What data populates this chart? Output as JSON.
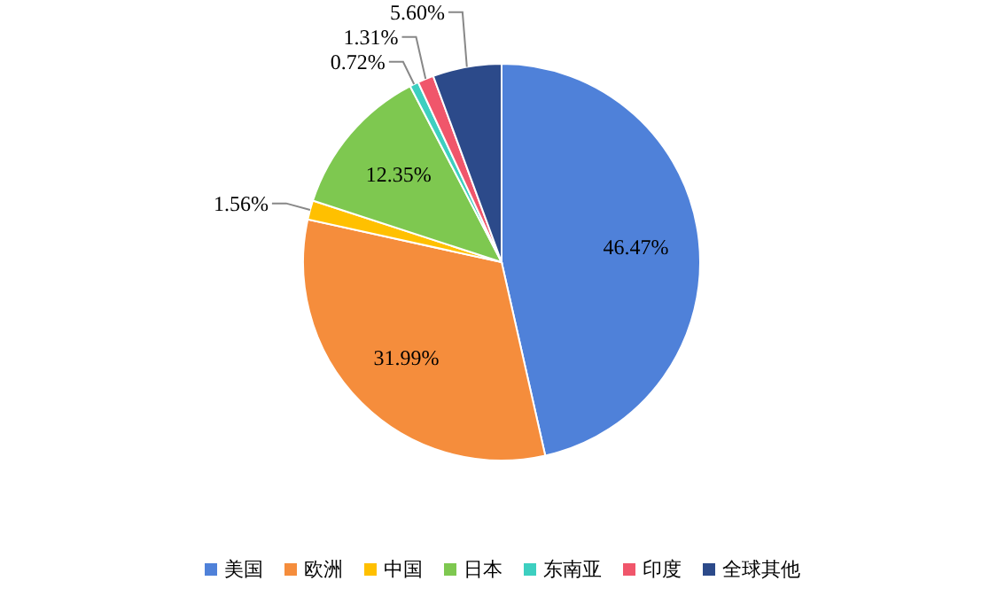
{
  "chart_data": {
    "type": "pie",
    "categories": [
      "美国",
      "欧洲",
      "中国",
      "日本",
      "东南亚",
      "印度",
      "全球其他"
    ],
    "values": [
      46.47,
      31.99,
      1.56,
      12.35,
      0.72,
      1.31,
      5.6
    ],
    "colors": [
      "#4f81d9",
      "#f58d3c",
      "#ffc000",
      "#7ec850",
      "#3dcfc0",
      "#f0566b",
      "#2c4a8a"
    ],
    "value_labels": [
      "46.47%",
      "31.99%",
      "1.56%",
      "12.35%",
      "0.72%",
      "1.31%",
      "5.60%"
    ],
    "legend": "bottom"
  }
}
